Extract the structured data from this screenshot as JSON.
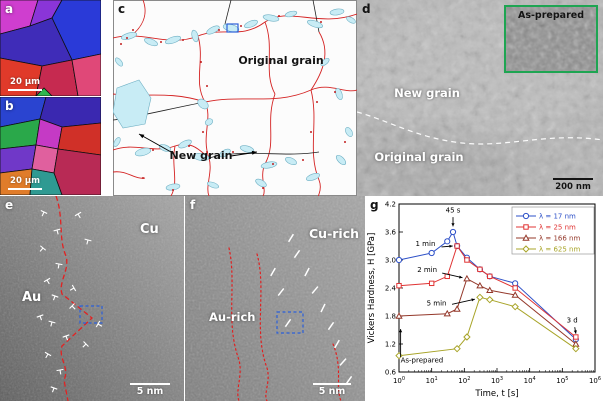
{
  "figure": {
    "panel_letters": {
      "a": "a",
      "b": "b",
      "c": "c",
      "d": "d",
      "e": "e",
      "f": "f",
      "g": "g"
    }
  },
  "colors": {
    "boundary_red": "#d42222",
    "new_grain_blue": "#c8ecf5",
    "inset_border_green": "#1ea552",
    "highlight_box_blue": "#2b5fd9"
  },
  "panel_a": {
    "scalebar_label": "20 μm"
  },
  "panel_b": {
    "scalebar_label": "20 μm"
  },
  "panel_c": {
    "original_grain_label": "Original grain",
    "new_grain_label": "New grain"
  },
  "panel_d": {
    "new_grain_label": "New grain",
    "original_grain_label": "Original grain",
    "inset_label": "As-prepared",
    "scalebar_label": "200 nm"
  },
  "panel_e": {
    "cu_label": "Cu",
    "au_label": "Au",
    "scalebar_label": "5 nm"
  },
  "panel_f": {
    "cu_rich_label": "Cu-rich",
    "au_rich_label": "Au-rich",
    "scalebar_label": "5 nm"
  },
  "chart_data": {
    "type": "line",
    "xlabel": "Time, t [s]",
    "ylabel": "Vickers Hardness, H [GPa]",
    "x_scale": "log",
    "x_exp_range": [
      0,
      6
    ],
    "ylim": [
      0.6,
      4.2
    ],
    "y_ticks": [
      0.6,
      1.2,
      1.8,
      2.4,
      3.0,
      3.6,
      4.2
    ],
    "grid": false,
    "legend_position": "top-right",
    "series": [
      {
        "name": "λ = 17 nm",
        "color": "#2d50c8",
        "marker": "circle",
        "x": [
          1,
          10,
          30,
          45,
          60,
          120,
          300,
          600,
          3600,
          259200
        ],
        "y": [
          3.0,
          3.15,
          3.4,
          3.6,
          3.3,
          3.05,
          2.8,
          2.65,
          2.5,
          1.3
        ]
      },
      {
        "name": "λ = 25 nm",
        "color": "#e03434",
        "marker": "square",
        "x": [
          1,
          10,
          30,
          60,
          120,
          300,
          600,
          3600,
          259200
        ],
        "y": [
          2.45,
          2.5,
          2.65,
          3.3,
          3.0,
          2.8,
          2.65,
          2.4,
          1.35
        ]
      },
      {
        "name": "λ = 166 nm",
        "color": "#94382a",
        "marker": "triangle",
        "x": [
          1,
          30,
          60,
          120,
          300,
          600,
          3600,
          259200
        ],
        "y": [
          1.8,
          1.85,
          1.95,
          2.6,
          2.45,
          2.35,
          2.25,
          1.2
        ]
      },
      {
        "name": "λ = 625 nm",
        "color": "#a8a428",
        "marker": "diamond",
        "x": [
          1,
          60,
          120,
          300,
          600,
          3600,
          259200
        ],
        "y": [
          0.95,
          1.1,
          1.35,
          2.2,
          2.15,
          2.0,
          1.1
        ]
      }
    ],
    "annotations": [
      {
        "text": "45 s",
        "tx": 45,
        "ty": 4.02,
        "anchor": "middle",
        "arrow": {
          "from": [
            45,
            3.92
          ],
          "to": [
            45,
            3.72
          ]
        }
      },
      {
        "text": "1 min",
        "tx": 3.2,
        "ty": 3.3,
        "anchor": "start",
        "arrow": {
          "from": [
            20,
            3.28
          ],
          "to": [
            44,
            3.3
          ]
        }
      },
      {
        "text": "2 min",
        "tx": 3.6,
        "ty": 2.74,
        "anchor": "start",
        "arrow": {
          "from": [
            21,
            2.72
          ],
          "to": [
            88,
            2.62
          ]
        }
      },
      {
        "text": "5 min",
        "tx": 7,
        "ty": 2.02,
        "anchor": "start",
        "arrow": {
          "from": [
            42,
            2.05
          ],
          "to": [
            210,
            2.16
          ]
        }
      },
      {
        "text": "As-prepared",
        "tx": 1.12,
        "ty": 0.8,
        "anchor": "start",
        "arrow": {
          "from": [
            1.12,
            0.92
          ],
          "to": [
            1.12,
            1.52
          ]
        }
      },
      {
        "text": "3 d",
        "tx": 200000,
        "ty": 1.66,
        "anchor": "middle",
        "arrow": {
          "from": [
            240000,
            1.56
          ],
          "to": [
            259200,
            1.42
          ]
        }
      }
    ]
  }
}
